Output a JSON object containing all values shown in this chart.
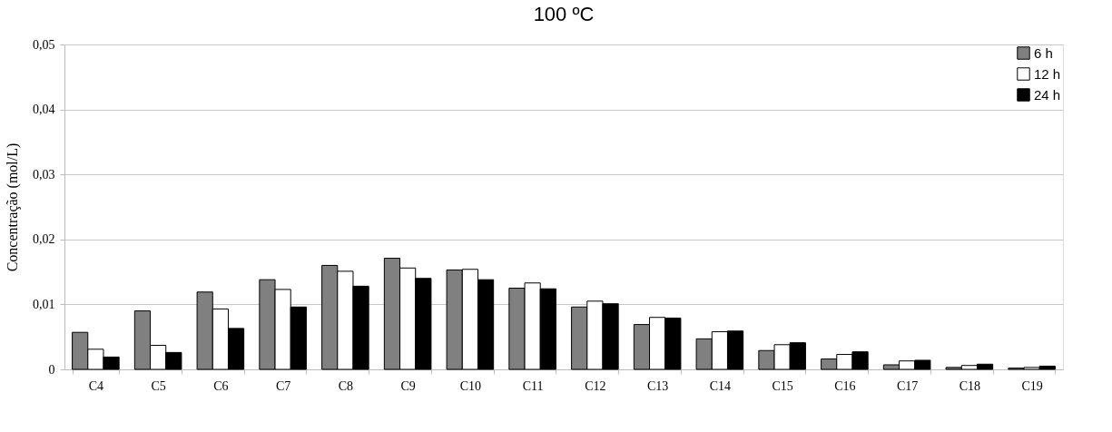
{
  "chart_data": {
    "type": "bar",
    "title": "100 ºC",
    "ylabel": "Concentração (mol/L)",
    "categories": [
      "C4",
      "C5",
      "C6",
      "C7",
      "C8",
      "C9",
      "C10",
      "C11",
      "C12",
      "C13",
      "C14",
      "C15",
      "C16",
      "C17",
      "C18",
      "C19"
    ],
    "series": [
      {
        "name": "6 h",
        "color": "#808080",
        "values": [
          0.0057,
          0.009,
          0.0119,
          0.0138,
          0.016,
          0.0171,
          0.0153,
          0.0125,
          0.0096,
          0.0069,
          0.0047,
          0.0029,
          0.0016,
          0.0007,
          0.0003,
          0.0002
        ]
      },
      {
        "name": "12 h",
        "color": "#ffffff",
        "values": [
          0.0031,
          0.0037,
          0.0093,
          0.0123,
          0.0151,
          0.0156,
          0.0154,
          0.0133,
          0.0105,
          0.008,
          0.0058,
          0.0038,
          0.0023,
          0.0013,
          0.0006,
          0.0003
        ]
      },
      {
        "name": "24 h",
        "color": "#000000",
        "values": [
          0.0019,
          0.0026,
          0.0063,
          0.0096,
          0.0128,
          0.014,
          0.0138,
          0.0124,
          0.0101,
          0.0079,
          0.0059,
          0.0041,
          0.0027,
          0.0014,
          0.0008,
          0.0005
        ]
      }
    ],
    "ylim": [
      0,
      0.05
    ],
    "yticks": [
      {
        "value": 0,
        "label": "0"
      },
      {
        "value": 0.01,
        "label": "0,01"
      },
      {
        "value": 0.02,
        "label": "0,02"
      },
      {
        "value": 0.03,
        "label": "0,03"
      },
      {
        "value": 0.04,
        "label": "0,04"
      },
      {
        "value": 0.05,
        "label": "0,05"
      }
    ],
    "grid": "y",
    "legend": "top right"
  }
}
